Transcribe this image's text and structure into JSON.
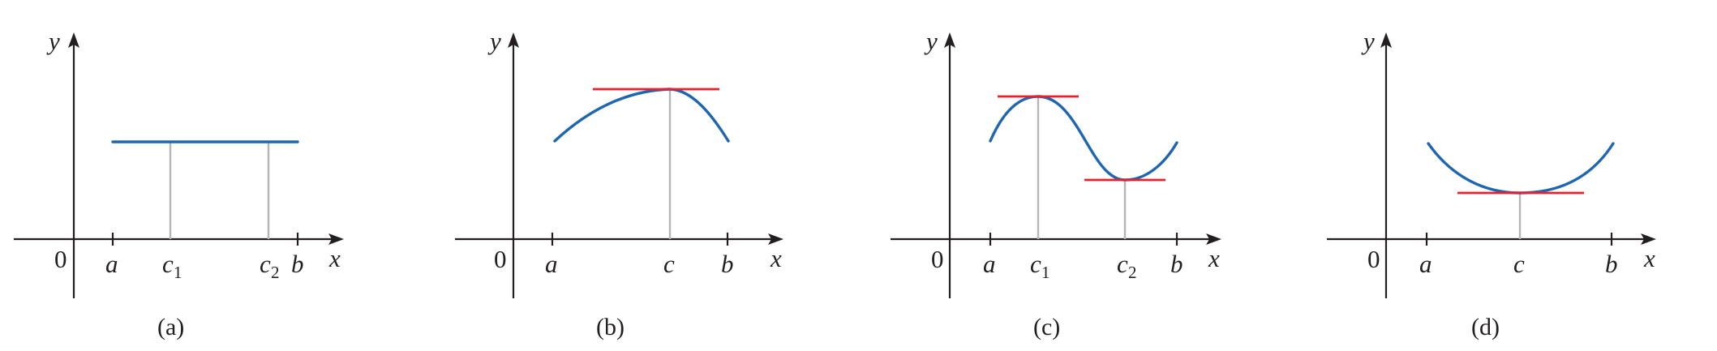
{
  "panels": [
    {
      "caption": "(a)",
      "origin_label": "0",
      "x_axis_label": "x",
      "y_axis_label": "y",
      "points": [
        {
          "letter": "a",
          "sub": ""
        },
        {
          "letter": "c",
          "sub": "1"
        },
        {
          "letter": "c",
          "sub": "2"
        },
        {
          "letter": "b",
          "sub": ""
        }
      ]
    },
    {
      "caption": "(b)",
      "origin_label": "0",
      "x_axis_label": "x",
      "y_axis_label": "y",
      "points": [
        {
          "letter": "a",
          "sub": ""
        },
        {
          "letter": "c",
          "sub": ""
        },
        {
          "letter": "b",
          "sub": ""
        }
      ]
    },
    {
      "caption": "(c)",
      "origin_label": "0",
      "x_axis_label": "x",
      "y_axis_label": "y",
      "points": [
        {
          "letter": "a",
          "sub": ""
        },
        {
          "letter": "c",
          "sub": "1"
        },
        {
          "letter": "c",
          "sub": "2"
        },
        {
          "letter": "b",
          "sub": ""
        }
      ]
    },
    {
      "caption": "(d)",
      "origin_label": "0",
      "x_axis_label": "x",
      "y_axis_label": "y",
      "points": [
        {
          "letter": "a",
          "sub": ""
        },
        {
          "letter": "c",
          "sub": ""
        },
        {
          "letter": "b",
          "sub": ""
        }
      ]
    }
  ],
  "colors": {
    "curve": "#1f66b1",
    "tangent": "#e8212e",
    "drop_line": "#b5b5b5",
    "axis": "#231f20"
  }
}
